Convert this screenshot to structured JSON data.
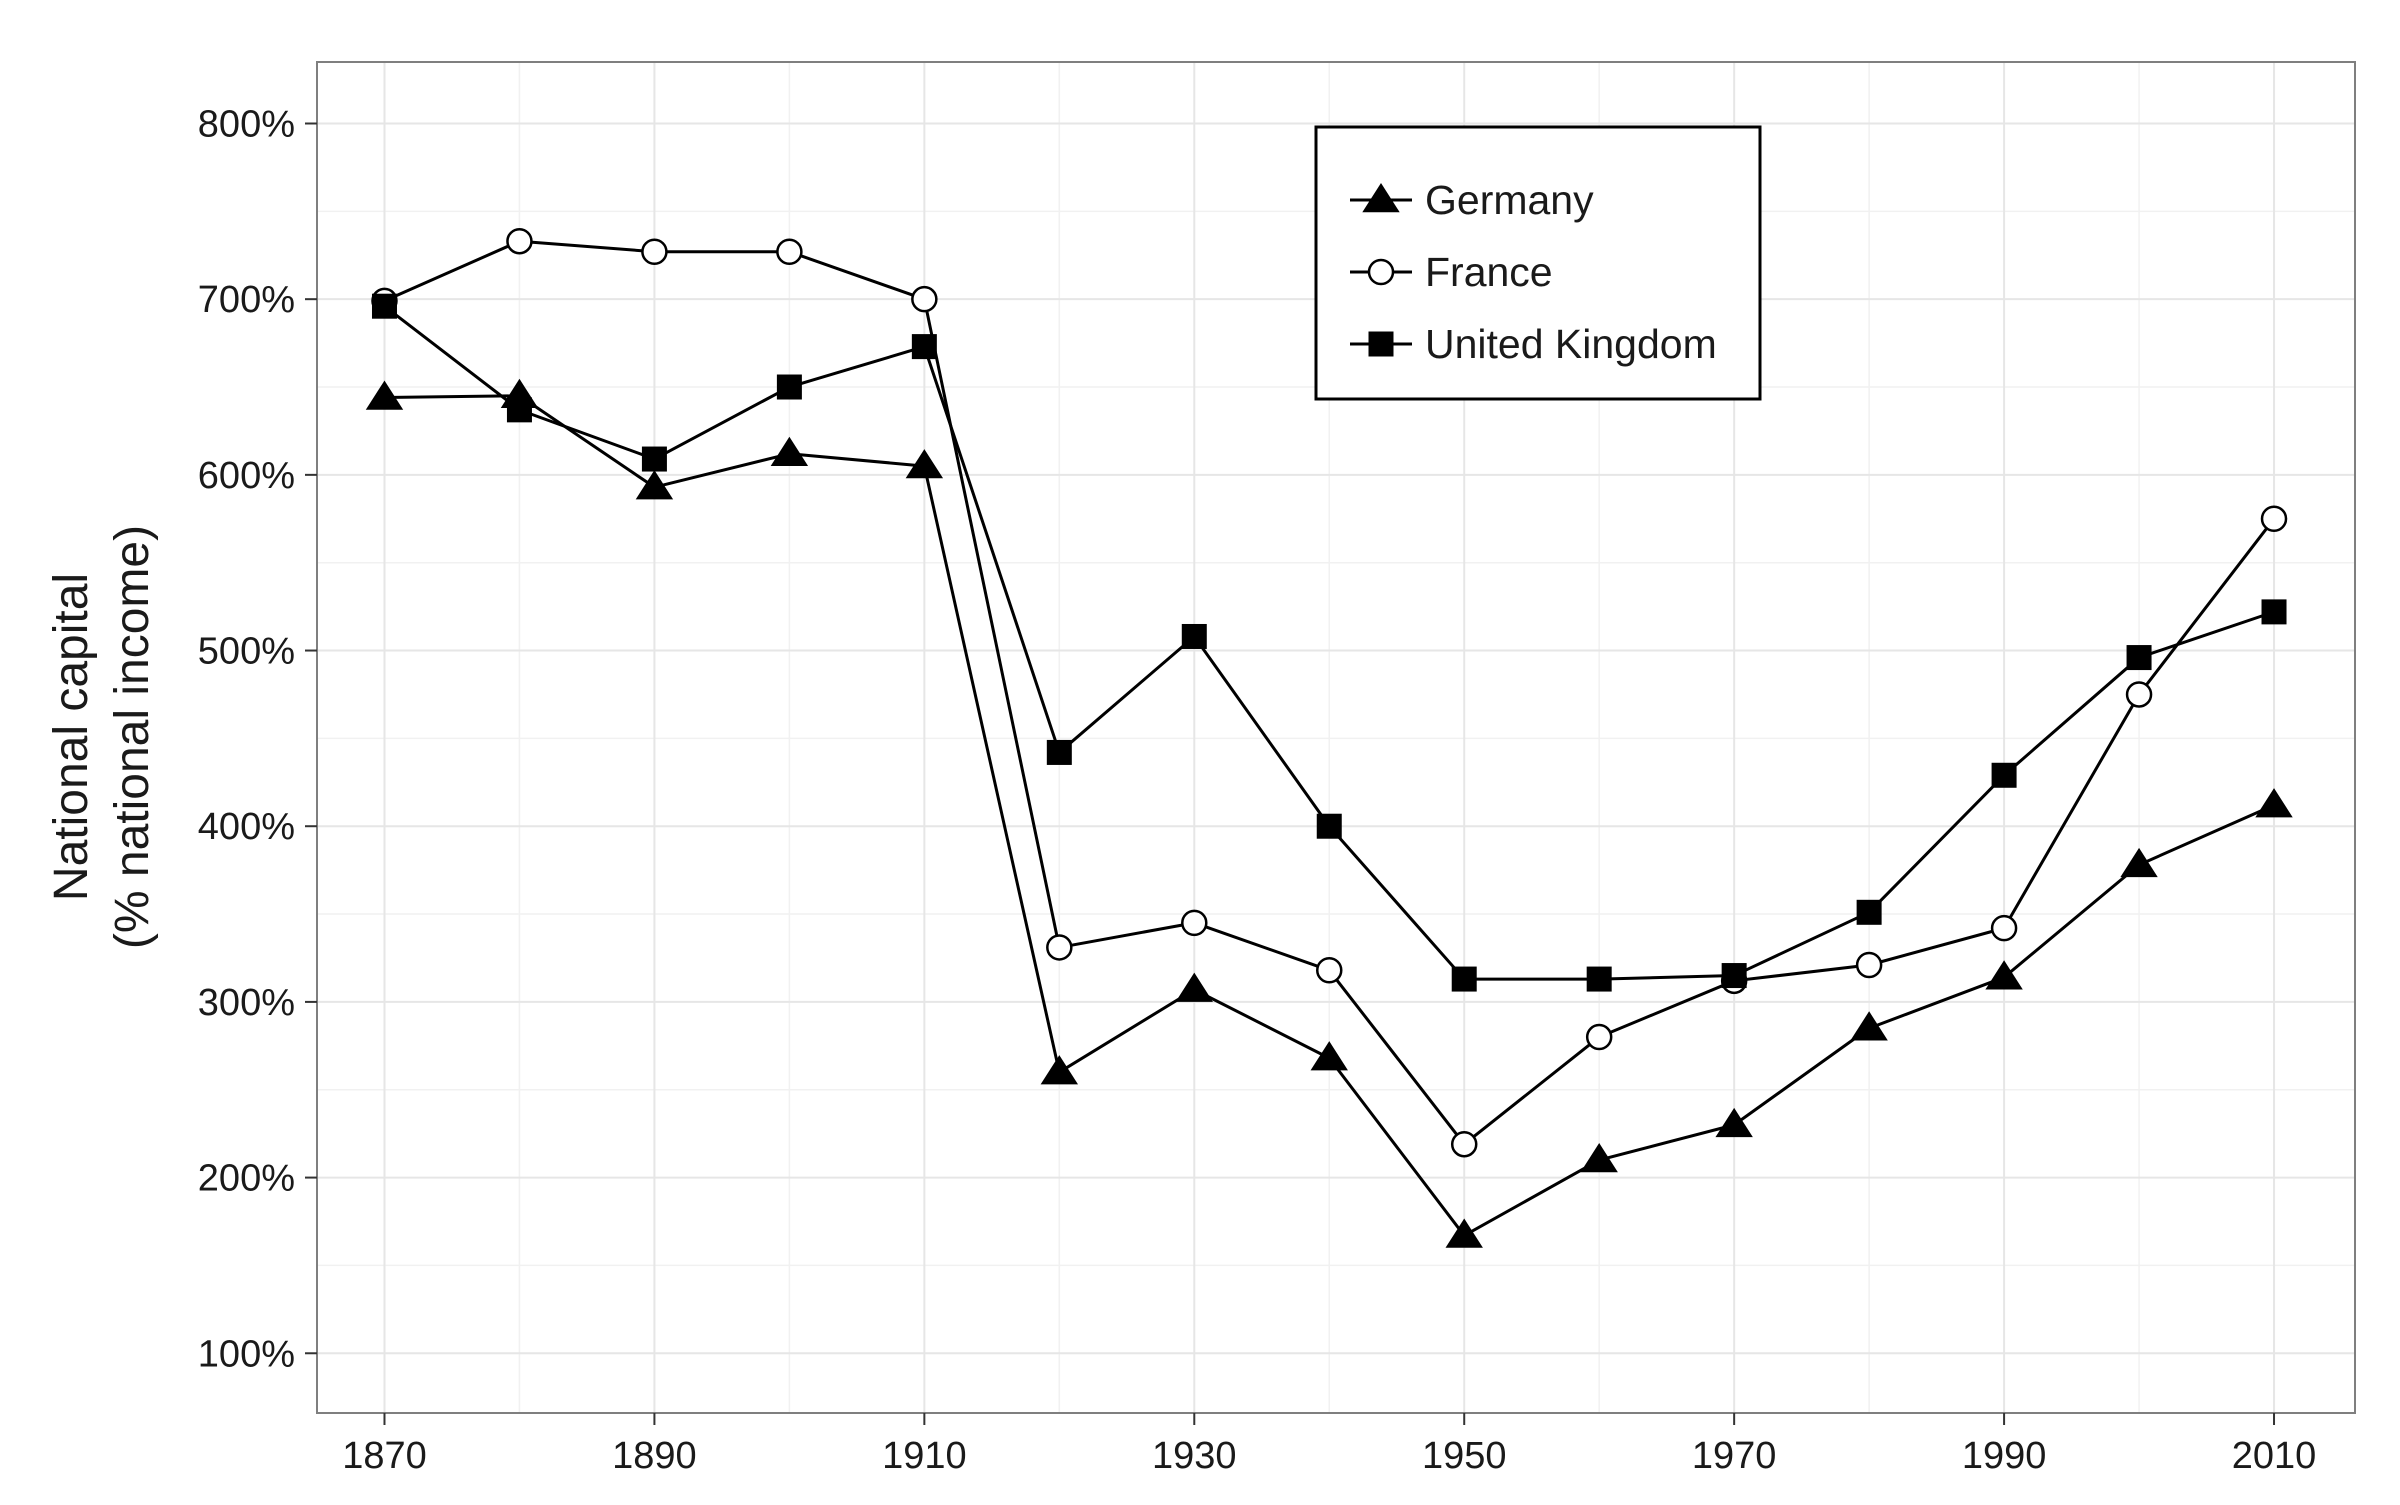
{
  "chart_data": {
    "type": "line",
    "ylabel_lines": [
      "National capital",
      "(% national income)"
    ],
    "xlim": [
      1865,
      2016
    ],
    "ylim": [
      66,
      835
    ],
    "x_ticks": [
      1870,
      1890,
      1910,
      1930,
      1950,
      1970,
      1990,
      2010
    ],
    "x_tick_labels": [
      "1870",
      "1890",
      "1910",
      "1930",
      "1950",
      "1970",
      "1990",
      "2010"
    ],
    "x_minor": [
      1880,
      1900,
      1920,
      1940,
      1960,
      1980,
      2000
    ],
    "y_ticks": [
      100,
      200,
      300,
      400,
      500,
      600,
      700,
      800
    ],
    "y_tick_labels": [
      "100%",
      "200%",
      "300%",
      "400%",
      "500%",
      "600%",
      "700%",
      "800%"
    ],
    "y_minor": [
      150,
      250,
      350,
      450,
      550,
      650,
      750
    ],
    "grid": true,
    "legend_position": "top-center",
    "x": [
      1870,
      1880,
      1890,
      1900,
      1910,
      1920,
      1930,
      1940,
      1950,
      1960,
      1970,
      1980,
      1990,
      2000,
      2010
    ],
    "series": [
      {
        "name": "Germany",
        "marker": "triangle-filled",
        "values": [
          644,
          645,
          593,
          612,
          605,
          260,
          307,
          268,
          167,
          210,
          230,
          285,
          314,
          378,
          412
        ]
      },
      {
        "name": "France",
        "marker": "circle-open",
        "values": [
          699,
          733,
          727,
          727,
          700,
          331,
          345,
          318,
          219,
          280,
          312,
          321,
          342,
          475,
          575
        ]
      },
      {
        "name": "United Kingdom",
        "marker": "square-filled",
        "values": [
          696,
          637,
          609,
          650,
          673,
          442,
          508,
          400,
          313,
          313,
          315,
          351,
          429,
          496,
          522
        ]
      }
    ],
    "line_color": "#000000",
    "grid_color": "#e6e6e6",
    "panel_border_color": "#7f7f7f"
  }
}
